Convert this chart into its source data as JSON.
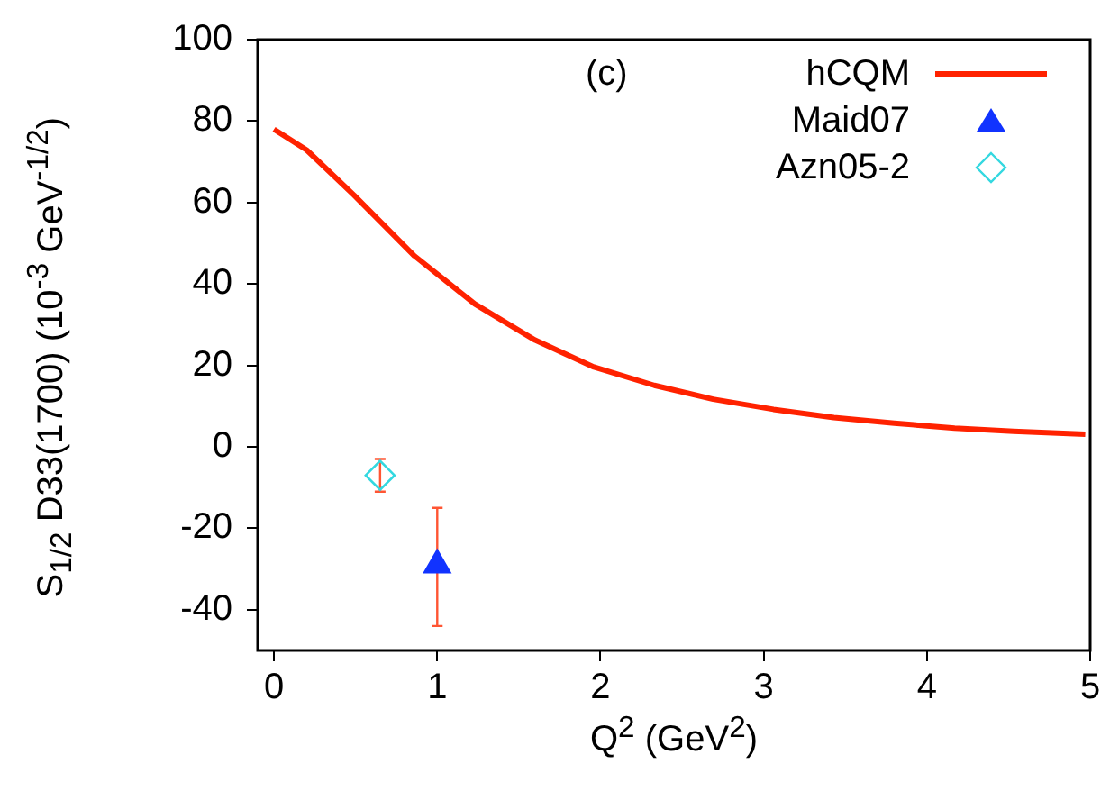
{
  "chart_data": {
    "type": "line",
    "xlabel": "Q$^{2}$ (GeV$^{2}$)",
    "ylabel": "S$_{1/2}$ D33(1700)  (10$^{-3}$ GeV$^{-1/2}$)",
    "annotations": [
      "(c)"
    ],
    "xlim": [
      -0.1,
      5
    ],
    "xticks": [
      0,
      1,
      2,
      3,
      4,
      5
    ],
    "ylim": [
      -50,
      100
    ],
    "yticks": [
      -40,
      -20,
      0,
      20,
      40,
      60,
      80,
      100
    ],
    "legend": "top right",
    "series": [
      {
        "name": "hCQM",
        "color": "#ff2200",
        "marker": "none",
        "line_style": "solid",
        "x": [
          0,
          0.2,
          0.49,
          0.86,
          1.23,
          1.6,
          1.96,
          2.33,
          2.69,
          3.06,
          3.43,
          3.8,
          4.17,
          4.53,
          4.97
        ],
        "values": [
          78,
          72.9,
          61.8,
          46.9,
          35.1,
          26.2,
          19.6,
          15.1,
          11.7,
          9.2,
          7.2,
          5.8,
          4.6,
          3.8,
          3.1
        ]
      },
      {
        "name": "Maid07",
        "type": "scatter",
        "color": "#1133ff",
        "marker": "triangle",
        "x": [
          1
        ],
        "values": [
          -29
        ],
        "errors": [
          [
            -44,
            -15
          ]
        ]
      },
      {
        "name": "Azn05-2",
        "type": "scatter",
        "color": "#33d8e0",
        "marker": "diamond",
        "x": [
          0.65
        ],
        "values": [
          -7
        ],
        "errors": [
          [
            -11,
            -3
          ]
        ]
      }
    ]
  }
}
